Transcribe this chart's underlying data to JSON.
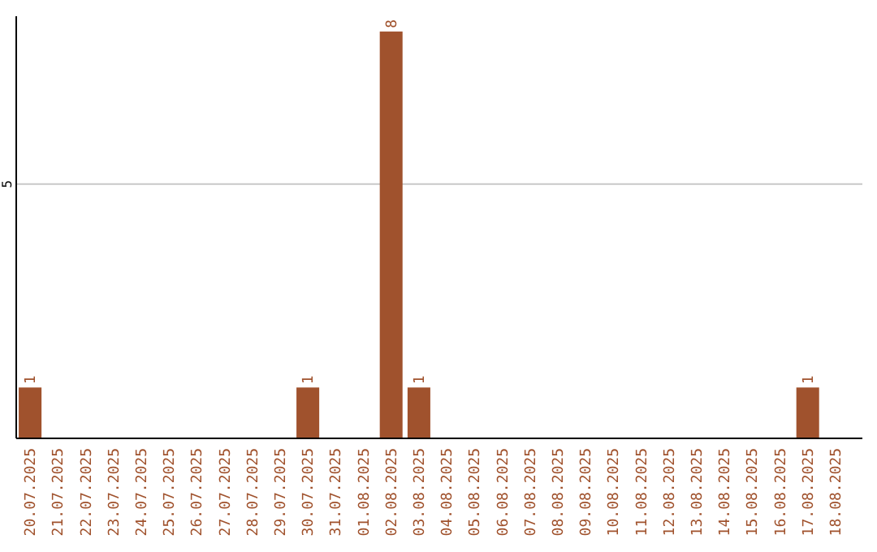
{
  "chart_data": {
    "type": "bar",
    "categories": [
      "20.07.2025",
      "21.07.2025",
      "22.07.2025",
      "23.07.2025",
      "24.07.2025",
      "25.07.2025",
      "26.07.2025",
      "27.07.2025",
      "28.07.2025",
      "29.07.2025",
      "30.07.2025",
      "31.07.2025",
      "01.08.2025",
      "02.08.2025",
      "03.08.2025",
      "04.08.2025",
      "05.08.2025",
      "06.08.2025",
      "07.08.2025",
      "08.08.2025",
      "09.08.2025",
      "10.08.2025",
      "11.08.2025",
      "12.08.2025",
      "13.08.2025",
      "14.08.2025",
      "15.08.2025",
      "16.08.2025",
      "17.08.2025",
      "18.08.2025"
    ],
    "values": [
      1,
      0,
      0,
      0,
      0,
      0,
      0,
      0,
      0,
      0,
      1,
      0,
      0,
      8,
      1,
      0,
      0,
      0,
      0,
      0,
      0,
      0,
      0,
      0,
      0,
      0,
      0,
      0,
      1,
      0
    ],
    "value_labels": [
      "1",
      null,
      null,
      null,
      null,
      null,
      null,
      null,
      null,
      null,
      "1",
      null,
      null,
      "8",
      "1",
      null,
      null,
      null,
      null,
      null,
      null,
      null,
      null,
      null,
      null,
      null,
      null,
      null,
      "1",
      null
    ],
    "color": "#a0522d",
    "ylim": [
      0,
      8.3
    ],
    "yticks": [
      5
    ],
    "grid": "y"
  }
}
